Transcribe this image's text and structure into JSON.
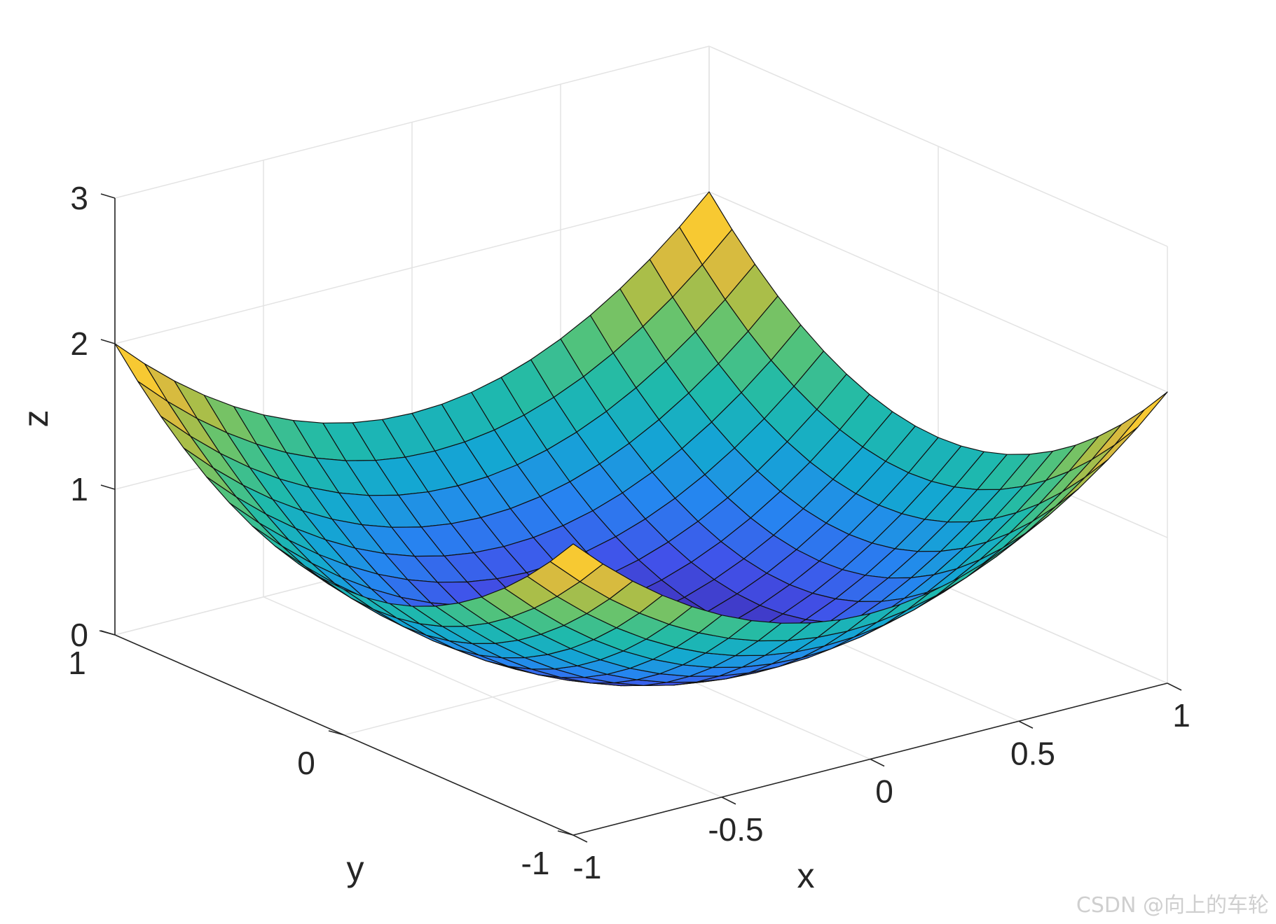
{
  "chart_data": {
    "type": "surface",
    "function": "z = x^2 + y^2 (mesh surface, parula colormap)",
    "x": {
      "label": "x",
      "range": [
        -1,
        1
      ],
      "ticks": [
        -1,
        -0.5,
        0,
        0.5,
        1
      ],
      "tick_labels": [
        "-1",
        "-0.5",
        "0",
        "0.5",
        "1"
      ]
    },
    "y": {
      "label": "y",
      "range": [
        -1,
        1
      ],
      "ticks": [
        -1,
        0,
        1
      ],
      "tick_labels": [
        "-1",
        "0",
        "1"
      ]
    },
    "z": {
      "label": "z",
      "range": [
        0,
        3
      ],
      "ticks": [
        0,
        1,
        2,
        3
      ],
      "tick_labels": [
        "0",
        "1",
        "2",
        "3"
      ]
    },
    "grid_points": 21,
    "grid": true,
    "colormap": [
      "#3e26a8",
      "#4151e9",
      "#2685f0",
      "#14a7d2",
      "#1fbaaa",
      "#59c475",
      "#b5bd43",
      "#f6b93b",
      "#f9fb15"
    ]
  },
  "watermark": "CSDN @向上的车轮"
}
